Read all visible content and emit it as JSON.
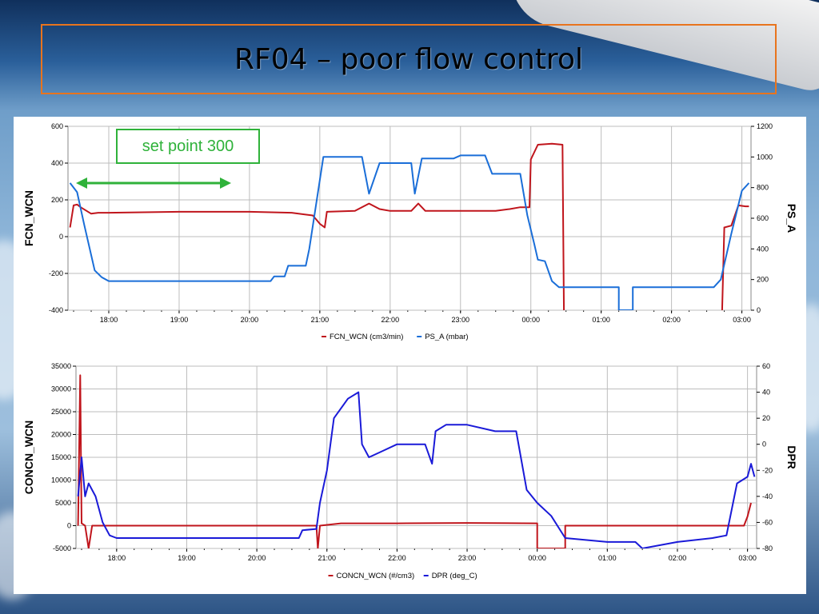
{
  "slide": {
    "title": "RF04 – poor flow control"
  },
  "annotation": {
    "text": "set point 300",
    "arrow_color": "#2fb23a"
  },
  "chart_data": [
    {
      "type": "line",
      "x_ticks": [
        "18:00",
        "19:00",
        "20:00",
        "21:00",
        "22:00",
        "23:00",
        "00:00",
        "01:00",
        "02:00",
        "03:00"
      ],
      "x_range_hours": [
        17.42,
        27.13
      ],
      "y_left": {
        "label": "FCN_WCN",
        "range": [
          -400,
          600
        ],
        "ticks": [
          600,
          400,
          200,
          0,
          -200,
          -400
        ]
      },
      "y_right": {
        "label": "PS_A",
        "range": [
          0,
          1200
        ],
        "ticks": [
          1200,
          1000,
          800,
          600,
          400,
          200,
          0
        ]
      },
      "legend": [
        "FCN_WCN (cm3/min)",
        "PS_A (mbar)"
      ],
      "series": [
        {
          "name": "FCN_WCN (cm3/min)",
          "axis": "left",
          "color": "#c0151c",
          "points": [
            [
              17.45,
              50
            ],
            [
              17.5,
              170
            ],
            [
              17.55,
              175
            ],
            [
              17.6,
              160
            ],
            [
              17.75,
              125
            ],
            [
              17.85,
              130
            ],
            [
              18.0,
              130
            ],
            [
              19.0,
              135
            ],
            [
              20.0,
              135
            ],
            [
              20.6,
              130
            ],
            [
              20.9,
              115
            ],
            [
              21.0,
              70
            ],
            [
              21.07,
              50
            ],
            [
              21.1,
              135
            ],
            [
              21.5,
              140
            ],
            [
              21.7,
              180
            ],
            [
              21.85,
              150
            ],
            [
              22.0,
              140
            ],
            [
              22.3,
              140
            ],
            [
              22.4,
              180
            ],
            [
              22.5,
              140
            ],
            [
              23.0,
              140
            ],
            [
              23.5,
              140
            ],
            [
              23.7,
              150
            ],
            [
              23.85,
              160
            ],
            [
              23.98,
              160
            ],
            [
              24.0,
              420
            ],
            [
              24.1,
              500
            ],
            [
              24.3,
              505
            ],
            [
              24.45,
              500
            ],
            [
              24.47,
              -420
            ],
            [
              24.5,
              -420
            ]
          ],
          "points_end": [
            [
              26.72,
              -400
            ],
            [
              26.75,
              50
            ],
            [
              26.85,
              60
            ],
            [
              26.95,
              170
            ],
            [
              27.05,
              165
            ],
            [
              27.1,
              165
            ]
          ]
        },
        {
          "name": "PS_A (mbar)",
          "axis": "right",
          "color": "#1a6ed8",
          "points": [
            [
              17.45,
              830
            ],
            [
              17.55,
              770
            ],
            [
              17.65,
              560
            ],
            [
              17.8,
              260
            ],
            [
              17.9,
              215
            ],
            [
              18.0,
              190
            ],
            [
              19.0,
              190
            ],
            [
              20.0,
              190
            ],
            [
              20.3,
              190
            ],
            [
              20.35,
              220
            ],
            [
              20.5,
              220
            ],
            [
              20.55,
              290
            ],
            [
              20.8,
              290
            ],
            [
              20.85,
              400
            ],
            [
              21.05,
              1000
            ],
            [
              21.3,
              1000
            ],
            [
              21.6,
              1000
            ],
            [
              21.7,
              760
            ],
            [
              21.85,
              960
            ],
            [
              22.1,
              960
            ],
            [
              22.3,
              960
            ],
            [
              22.35,
              760
            ],
            [
              22.45,
              990
            ],
            [
              22.9,
              990
            ],
            [
              23.0,
              1010
            ],
            [
              23.35,
              1010
            ],
            [
              23.45,
              890
            ],
            [
              23.85,
              890
            ],
            [
              23.95,
              620
            ],
            [
              24.05,
              430
            ],
            [
              24.1,
              330
            ],
            [
              24.2,
              320
            ],
            [
              24.3,
              190
            ],
            [
              24.4,
              150
            ],
            [
              25.0,
              150
            ],
            [
              25.25,
              150
            ],
            [
              25.25,
              0
            ],
            [
              25.45,
              0
            ],
            [
              25.45,
              150
            ],
            [
              26.0,
              150
            ],
            [
              26.6,
              150
            ],
            [
              26.7,
              200
            ],
            [
              26.85,
              500
            ],
            [
              27.0,
              780
            ],
            [
              27.1,
              830
            ]
          ]
        }
      ]
    },
    {
      "type": "line",
      "x_ticks": [
        "18:00",
        "19:00",
        "20:00",
        "21:00",
        "22:00",
        "23:00",
        "00:00",
        "01:00",
        "02:00",
        "03:00"
      ],
      "x_range_hours": [
        17.42,
        27.13
      ],
      "y_left": {
        "label": "CONCN_WCN",
        "range": [
          -5000,
          35000
        ],
        "ticks": [
          35000,
          30000,
          25000,
          20000,
          15000,
          10000,
          5000,
          0,
          -5000
        ]
      },
      "y_right": {
        "label": "DPR",
        "range": [
          -80,
          60
        ],
        "ticks": [
          60,
          40,
          20,
          0,
          -20,
          -40,
          -60,
          -80
        ]
      },
      "legend": [
        "CONCN_WCN (#/cm3)",
        "DPR (deg_C)"
      ],
      "series": [
        {
          "name": "CONCN_WCN (#/cm3)",
          "axis": "left",
          "color": "#c0151c",
          "points": [
            [
              17.45,
              0
            ],
            [
              17.48,
              33000
            ],
            [
              17.5,
              500
            ],
            [
              17.55,
              0
            ],
            [
              17.6,
              -5000
            ],
            [
              17.65,
              0
            ],
            [
              18.0,
              0
            ],
            [
              20.0,
              0
            ],
            [
              20.85,
              0
            ],
            [
              20.87,
              -5000
            ],
            [
              20.9,
              0
            ],
            [
              21.2,
              500
            ],
            [
              22.0,
              500
            ],
            [
              23.0,
              600
            ],
            [
              24.0,
              500
            ],
            [
              24.0,
              -5000
            ],
            [
              24.4,
              -5000
            ],
            [
              24.4,
              0
            ],
            [
              26.95,
              0
            ],
            [
              27.0,
              2000
            ],
            [
              27.05,
              5000
            ]
          ]
        },
        {
          "name": "DPR (deg_C)",
          "axis": "right",
          "color": "#1a1ad8",
          "points": [
            [
              17.45,
              -40
            ],
            [
              17.5,
              -10
            ],
            [
              17.55,
              -40
            ],
            [
              17.6,
              -30
            ],
            [
              17.7,
              -40
            ],
            [
              17.8,
              -60
            ],
            [
              17.9,
              -70
            ],
            [
              18.0,
              -72
            ],
            [
              19.0,
              -72
            ],
            [
              20.0,
              -72
            ],
            [
              20.6,
              -72
            ],
            [
              20.65,
              -66
            ],
            [
              20.85,
              -65
            ],
            [
              20.9,
              -45
            ],
            [
              21.0,
              -20
            ],
            [
              21.1,
              20
            ],
            [
              21.3,
              35
            ],
            [
              21.45,
              40
            ],
            [
              21.5,
              0
            ],
            [
              21.6,
              -10
            ],
            [
              21.8,
              -5
            ],
            [
              22.0,
              0
            ],
            [
              22.2,
              0
            ],
            [
              22.4,
              0
            ],
            [
              22.5,
              -15
            ],
            [
              22.55,
              10
            ],
            [
              22.7,
              15
            ],
            [
              23.0,
              15
            ],
            [
              23.4,
              10
            ],
            [
              23.7,
              10
            ],
            [
              23.85,
              -35
            ],
            [
              24.0,
              -45
            ],
            [
              24.2,
              -55
            ],
            [
              24.4,
              -72
            ],
            [
              25.0,
              -75
            ],
            [
              25.4,
              -75
            ],
            [
              25.5,
              -80
            ],
            [
              26.0,
              -75
            ],
            [
              26.5,
              -72
            ],
            [
              26.7,
              -70
            ],
            [
              26.85,
              -30
            ],
            [
              27.0,
              -25
            ],
            [
              27.05,
              -15
            ],
            [
              27.1,
              -25
            ]
          ]
        }
      ]
    }
  ]
}
